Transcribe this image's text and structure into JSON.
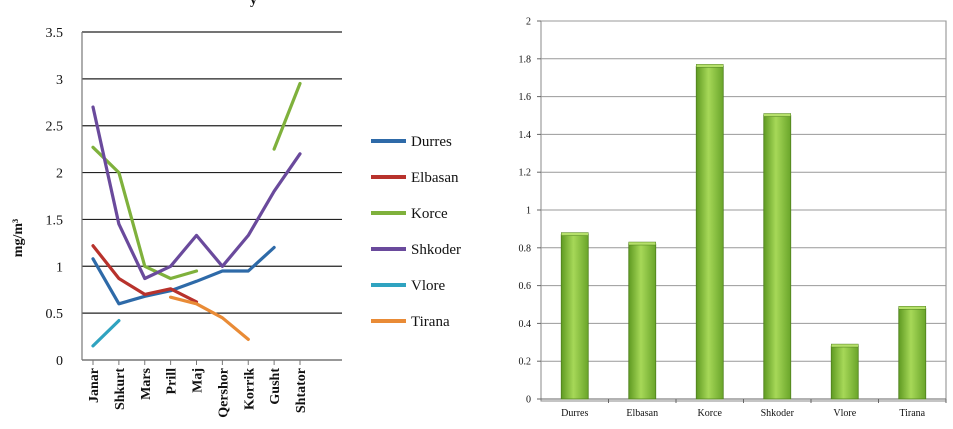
{
  "chart_data": [
    {
      "type": "line",
      "title": "",
      "title_fragment": "y",
      "xlabel": "",
      "ylabel": "mg/m³",
      "ylim": [
        0,
        3.5
      ],
      "yticks": [
        0,
        0.5,
        1,
        1.5,
        2,
        2.5,
        3,
        3.5
      ],
      "ytick_labels": [
        "0",
        "0.5",
        "1",
        "1.5",
        "2",
        "2.5",
        "3",
        "3.5"
      ],
      "grid": "horizontal",
      "legend_position": "right",
      "categories": [
        "Janar",
        "Shkurt",
        "Mars",
        "Prill",
        "Maj",
        "Qershor",
        "Korrik",
        "Gusht",
        "Shtator"
      ],
      "series": [
        {
          "name": "Durres",
          "color": "#2e6aa8",
          "values": [
            1.08,
            0.6,
            0.68,
            0.74,
            0.84,
            0.95,
            0.95,
            1.2,
            null
          ]
        },
        {
          "name": "Elbasan",
          "color": "#b8322c",
          "values": [
            1.22,
            0.87,
            0.7,
            0.76,
            0.62,
            null,
            null,
            null,
            null
          ]
        },
        {
          "name": "Korce",
          "color": "#7fb13c",
          "values": [
            2.27,
            2.0,
            1.0,
            0.87,
            0.95,
            null,
            null,
            2.25,
            2.95
          ]
        },
        {
          "name": "Shkoder",
          "color": "#6a4a9c",
          "values": [
            2.7,
            1.45,
            0.87,
            1.0,
            1.33,
            1.0,
            1.33,
            1.8,
            2.2
          ]
        },
        {
          "name": "Vlore",
          "color": "#2fa3c0",
          "values": [
            0.15,
            0.42,
            null,
            null,
            null,
            null,
            null,
            null,
            null
          ]
        },
        {
          "name": "Tirana",
          "color": "#e98b36",
          "values": [
            null,
            null,
            null,
            0.67,
            0.6,
            0.45,
            0.22,
            null,
            null
          ]
        }
      ]
    },
    {
      "type": "bar",
      "title": "",
      "xlabel": "",
      "ylabel": "",
      "ylim": [
        0,
        2
      ],
      "yticks": [
        0,
        0.2,
        0.4,
        0.6,
        0.8,
        1,
        1.2,
        1.4,
        1.6,
        1.8,
        2
      ],
      "ytick_labels": [
        "0",
        "0.2",
        "0.4",
        "0.6",
        "0.8",
        "1",
        "1.2",
        "1.4",
        "1.6",
        "1.8",
        "2"
      ],
      "grid": "horizontal",
      "bar_color": "#8cc43c",
      "categories": [
        "Durres",
        "Elbasan",
        "Korce",
        "Shkoder",
        "Vlore",
        "Tirana"
      ],
      "values": [
        0.87,
        0.82,
        1.76,
        1.5,
        0.28,
        0.48
      ]
    }
  ]
}
